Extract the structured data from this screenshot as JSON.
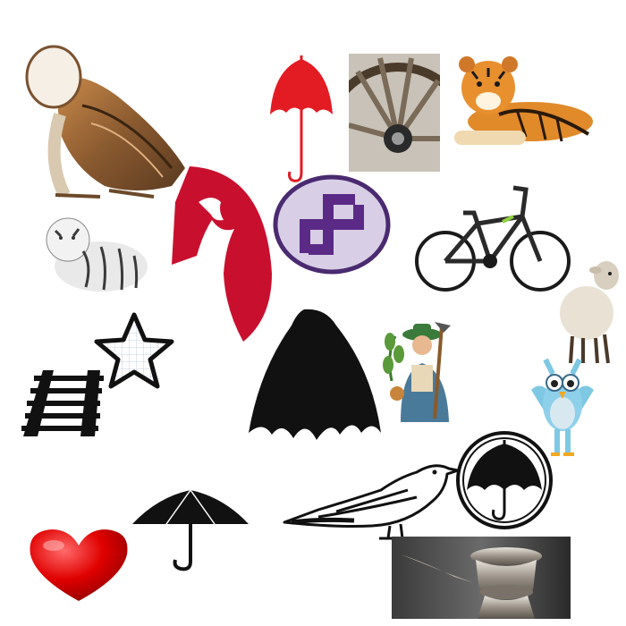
{
  "canvas": {
    "background": "#ffffff"
  },
  "items": [
    {
      "id": "barn-owl",
      "icon": "barn-owl-photo"
    },
    {
      "id": "red-umbrella",
      "icon": "umbrella-icon",
      "color": "#e31b23"
    },
    {
      "id": "wagon-wheel",
      "icon": "wheel-photo"
    },
    {
      "id": "tiger-lying",
      "icon": "tiger-photo"
    },
    {
      "id": "red-rooster-arch",
      "icon": "rooster-silhouette",
      "color": "#c8102e"
    },
    {
      "id": "swastika-badge",
      "icon": "swastika-icon",
      "color": "#5b2a86"
    },
    {
      "id": "bicycle",
      "icon": "bicycle-photo"
    },
    {
      "id": "white-tiger-sketch",
      "icon": "tiger-sketch"
    },
    {
      "id": "sheep",
      "icon": "sheep-photo"
    },
    {
      "id": "star-outline",
      "icon": "star-icon"
    },
    {
      "id": "railway-track",
      "icon": "rail-track-icon"
    },
    {
      "id": "black-arch-shape",
      "icon": "umbrella-canopy-silhouette"
    },
    {
      "id": "farmer",
      "icon": "farmer-illustration"
    },
    {
      "id": "cartoon-owl",
      "icon": "owl-cartoon"
    },
    {
      "id": "black-umbrella-circle",
      "icon": "umbrella-badge-icon"
    },
    {
      "id": "bird-sketch",
      "icon": "bird-sketch"
    },
    {
      "id": "red-heart",
      "icon": "heart-icon",
      "color": "#e00000"
    },
    {
      "id": "black-umbrella",
      "icon": "umbrella-icon"
    },
    {
      "id": "oil-lamp",
      "icon": "lamp-photo"
    }
  ]
}
